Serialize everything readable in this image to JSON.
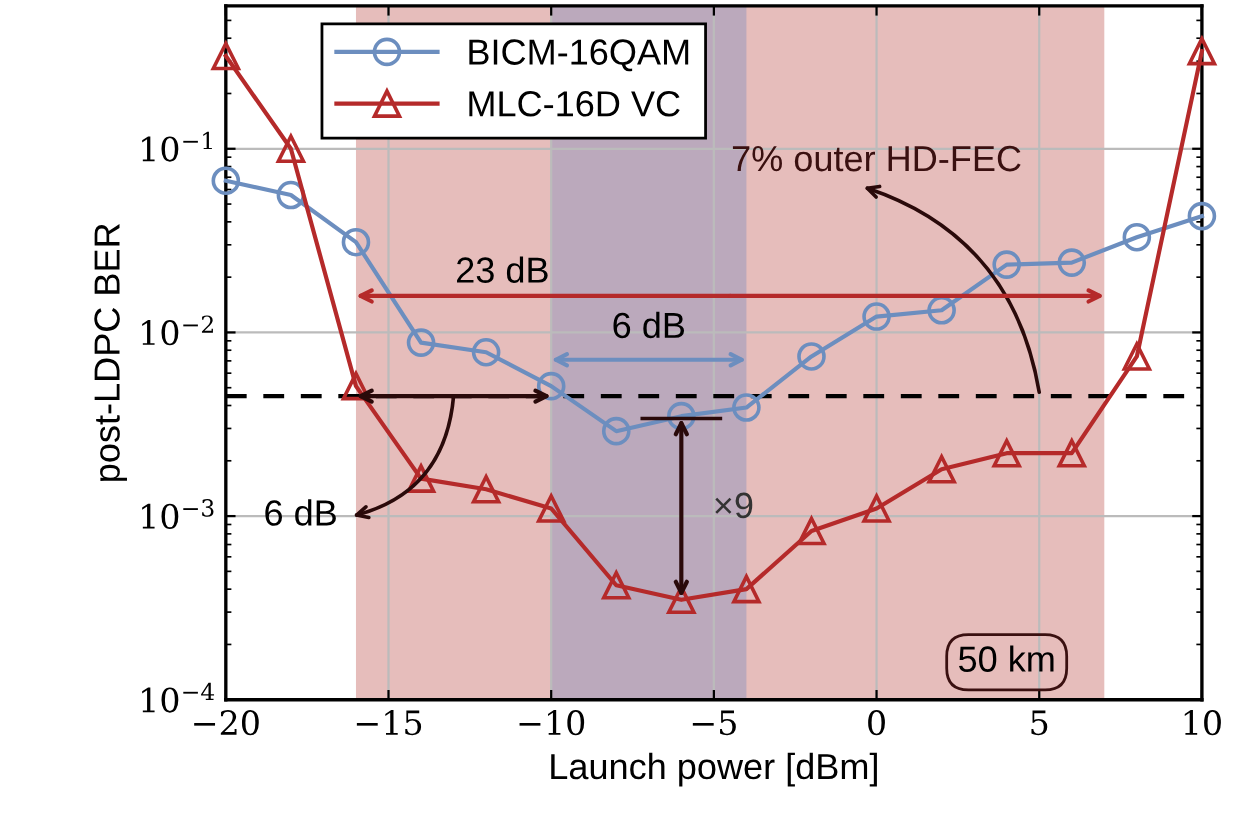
{
  "chart_data": {
    "type": "line",
    "xlabel": "Launch power [dBm]",
    "ylabel": "post-LDPC BER",
    "log": "y",
    "grid": true,
    "legend": "top left",
    "line_style": "solid",
    "x": [
      -20,
      -18,
      -16,
      -14,
      -12,
      -10,
      -8,
      -6,
      -4,
      -2,
      0,
      2,
      4,
      6,
      8,
      10
    ],
    "series": [
      {
        "name": "BICM-16QAM",
        "color": "#6c8ebf",
        "marker": "circle",
        "values": [
          0.067,
          0.056,
          0.031,
          0.0088,
          0.0078,
          0.0051,
          0.0029,
          0.0035,
          0.0039,
          0.0074,
          0.0122,
          0.0132,
          0.0234,
          0.024,
          0.033,
          0.043
        ]
      },
      {
        "name": "MLC-16D VC",
        "color": "#b52a2a",
        "marker": "triangle",
        "values": [
          0.32,
          0.1,
          0.0051,
          0.0016,
          0.0014,
          0.0011,
          0.00042,
          0.00035,
          0.0004,
          0.00083,
          0.0011,
          0.0018,
          0.0022,
          0.0022,
          0.0074,
          0.34
        ]
      }
    ],
    "xlim": [
      -20,
      10
    ],
    "ylim": [
      0.0001,
      0.6
    ],
    "xticks": [
      {
        "value": -20,
        "label": "−20"
      },
      {
        "value": -15,
        "label": "−15"
      },
      {
        "value": -10,
        "label": "−10"
      },
      {
        "value": -5,
        "label": "−5"
      },
      0,
      5,
      10
    ],
    "yticks": [
      {
        "value": 0.0001,
        "label": "10$^{−4}$"
      },
      {
        "value": 0.001,
        "label": "10$^{−3}$"
      },
      {
        "value": 0.01,
        "label": "10$^{−2}$"
      },
      {
        "value": 0.1,
        "label": "10$^{−1}$"
      }
    ],
    "ref_lines": [
      {
        "axis": "y",
        "value": 0.0045,
        "label": "7% outer HD-FEC",
        "color": "#000000",
        "line_style": "dashed"
      }
    ],
    "bands": [
      {
        "axis": "x",
        "from": -16,
        "to": 7,
        "color": "#e6bdbb"
      },
      {
        "axis": "x",
        "from": -10,
        "to": -4,
        "color": "#bba9bc"
      }
    ],
    "annotations": [
      "23 dB",
      {
        "text": "6 dB",
        "x": -4,
        "y": 0.0071
      },
      {
        "text": "6 dB",
        "x": -13,
        "y": 0.0045
      },
      "×9",
      "50 km"
    ]
  }
}
